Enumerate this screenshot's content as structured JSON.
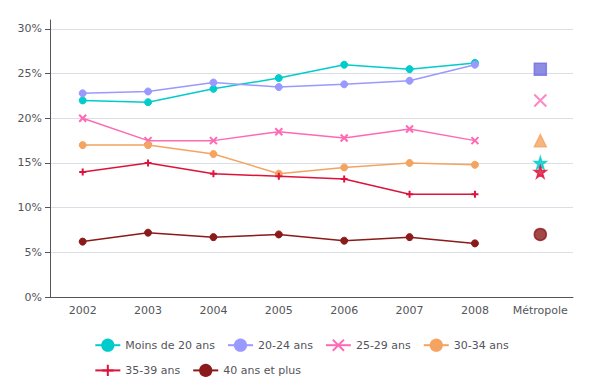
{
  "chart_data": {
    "type": "line",
    "categories": [
      "2002",
      "2003",
      "2004",
      "2005",
      "2006",
      "2007",
      "2008",
      "Métropole"
    ],
    "series": [
      {
        "name": "Moins de 20 ans",
        "type": "line",
        "color": "#00CCCC",
        "marker": "circle",
        "values": [
          22.0,
          21.8,
          23.3,
          24.5,
          26.0,
          25.5,
          26.2,
          null
        ]
      },
      {
        "type": "scatter",
        "color": "#00CCCC",
        "marker": "star",
        "values": [
          null,
          null,
          null,
          null,
          null,
          null,
          null,
          15.0
        ]
      },
      {
        "name": "20-24 ans",
        "type": "line",
        "color": "#9999FF",
        "marker": "circle",
        "values": [
          22.8,
          23.0,
          24.0,
          23.5,
          23.8,
          24.2,
          26.0,
          null
        ]
      },
      {
        "type": "scatter",
        "color": "#7070DD",
        "marker": "square",
        "values": [
          null,
          null,
          null,
          null,
          null,
          null,
          null,
          25.5
        ]
      },
      {
        "name": "25-29 ans",
        "type": "line",
        "color": "#FF69B4",
        "marker": "x",
        "values": [
          20.0,
          17.5,
          17.5,
          18.5,
          17.8,
          18.8,
          17.5,
          null
        ]
      },
      {
        "type": "scatter",
        "color": "#FF69B4",
        "marker": "x",
        "values": [
          null,
          null,
          null,
          null,
          null,
          null,
          null,
          22.0
        ]
      },
      {
        "name": "30-34 ans",
        "type": "line",
        "color": "#F4A460",
        "marker": "circle",
        "values": [
          17.0,
          17.0,
          16.0,
          13.8,
          14.5,
          15.0,
          14.8,
          null
        ]
      },
      {
        "type": "scatter",
        "color": "#F4A460",
        "marker": "triangle",
        "values": [
          null,
          null,
          null,
          null,
          null,
          null,
          null,
          17.5
        ]
      },
      {
        "name": "35-39 ans",
        "type": "line",
        "color": "#DC143C",
        "marker": "plus",
        "values": [
          14.0,
          15.0,
          13.8,
          13.5,
          13.2,
          11.5,
          11.5,
          null
        ]
      },
      {
        "type": "scatter",
        "color": "#DC143C",
        "marker": "star",
        "values": [
          null,
          null,
          null,
          null,
          null,
          null,
          null,
          14.0
        ]
      },
      {
        "name": "40 ans et plus",
        "type": "line",
        "color": "#8B1A1A",
        "marker": "circle",
        "values": [
          6.2,
          7.2,
          6.7,
          7.0,
          6.3,
          6.7,
          6.0,
          null
        ]
      },
      {
        "type": "scatter",
        "color": "#8B1A1A",
        "marker": "circle",
        "values": [
          null,
          null,
          null,
          null,
          null,
          null,
          null,
          7.0
        ]
      }
    ],
    "ylim": [
      0,
      31
    ],
    "yticks": [
      {
        "value": 0,
        "label": "0%"
      },
      {
        "value": 5,
        "label": "5%"
      },
      {
        "value": 10,
        "label": "10%"
      },
      {
        "value": 15,
        "label": "15%"
      },
      {
        "value": 20,
        "label": "20%"
      },
      {
        "value": 25,
        "label": "25%"
      },
      {
        "value": 30,
        "label": "30%"
      }
    ],
    "grid": true,
    "legend": "bottom"
  }
}
